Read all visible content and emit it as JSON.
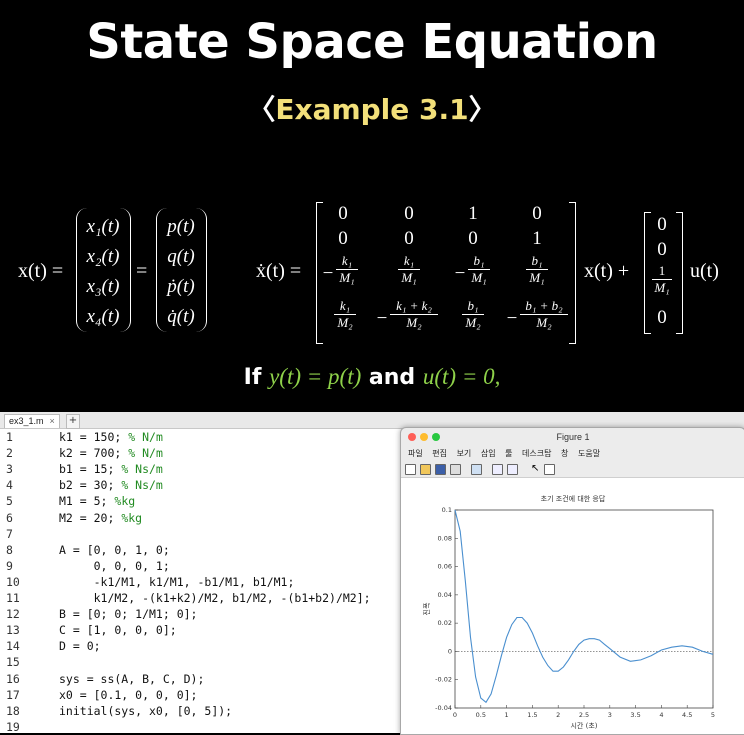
{
  "slide": {
    "title": "State Space Equation",
    "subtitle_open": "〈",
    "subtitle": "Example 3.1",
    "subtitle_close": "〉",
    "eq_left_lhs": "x(t) =",
    "x_vec": [
      "x₁(t)",
      "x₂(t)",
      "x₃(t)",
      "x₄(t)"
    ],
    "state_vec": [
      "p(t)",
      "q(t)",
      "ṗ(t)",
      "q̇(t)"
    ],
    "eq_right_lhs": "ẋ(t) =",
    "A_rows": {
      "r1": [
        "0",
        "0",
        "1",
        "0"
      ],
      "r2": [
        "0",
        "0",
        "0",
        "1"
      ]
    },
    "A_fracs": {
      "r3c1": {
        "sign": "−",
        "num": "k₁",
        "den": "M₁"
      },
      "r3c2": {
        "sign": "",
        "num": "k₁",
        "den": "M₁"
      },
      "r3c3": {
        "sign": "−",
        "num": "b₁",
        "den": "M₁"
      },
      "r3c4": {
        "sign": "",
        "num": "b₁",
        "den": "M₁"
      },
      "r4c1": {
        "sign": "",
        "num": "k₁",
        "den": "M₂"
      },
      "r4c2": {
        "sign": "−",
        "num": "k₁ + k₂",
        "den": "M₂"
      },
      "r4c3": {
        "sign": "",
        "num": "b₁",
        "den": "M₂"
      },
      "r4c4": {
        "sign": "−",
        "num": "b₁ + b₂",
        "den": "M₂"
      }
    },
    "x_plus": "x(t) +",
    "B_vec": {
      "b1": "0",
      "b2": "0",
      "b3_num": "1",
      "b3_den": "M₁",
      "b4": "0"
    },
    "u_term": "u(t)",
    "condition_if": "If",
    "condition_y": "y(t) = p(t)",
    "condition_and": "and",
    "condition_u": "u(t) = 0,"
  },
  "editor": {
    "tab_label": "ex3_1.m",
    "tab_close": "×",
    "tab_add": "+",
    "lines": [
      {
        "n": "1",
        "code": "k1 = 150; ",
        "comment": "% N/m"
      },
      {
        "n": "2",
        "code": "k2 = 700; ",
        "comment": "% N/m"
      },
      {
        "n": "3",
        "code": "b1 = 15; ",
        "comment": "% Ns/m"
      },
      {
        "n": "4",
        "code": "b2 = 30; ",
        "comment": "% Ns/m"
      },
      {
        "n": "5",
        "code": "M1 = 5; ",
        "comment": "%kg"
      },
      {
        "n": "6",
        "code": "M2 = 20; ",
        "comment": "%kg"
      },
      {
        "n": "7",
        "code": "",
        "comment": ""
      },
      {
        "n": "8",
        "code": "A = [0, 0, 1, 0;",
        "comment": ""
      },
      {
        "n": "9",
        "code": "     0, 0, 0, 1;",
        "comment": ""
      },
      {
        "n": "10",
        "code": "     -k1/M1, k1/M1, -b1/M1, b1/M1;",
        "comment": ""
      },
      {
        "n": "11",
        "code": "     k1/M2, -(k1+k2)/M2, b1/M2, -(b1+b2)/M2];",
        "comment": ""
      },
      {
        "n": "12",
        "code": "B = [0; 0; 1/M1; 0];",
        "comment": ""
      },
      {
        "n": "13",
        "code": "C = [1, 0, 0, 0];",
        "comment": ""
      },
      {
        "n": "14",
        "code": "D = 0;",
        "comment": ""
      },
      {
        "n": "15",
        "code": "",
        "comment": ""
      },
      {
        "n": "16",
        "code": "sys = ss(A, B, C, D);",
        "comment": ""
      },
      {
        "n": "17",
        "code": "x0 = [0.1, 0, 0, 0];",
        "comment": ""
      },
      {
        "n": "18",
        "code": "initial(sys, x0, [0, 5]);",
        "comment": ""
      },
      {
        "n": "19",
        "code": "",
        "comment": ""
      }
    ]
  },
  "figure": {
    "window_title": "Figure 1",
    "menu": [
      "파일",
      "편집",
      "보기",
      "삽입",
      "툴",
      "데스크탑",
      "창",
      "도움말"
    ],
    "colors": {
      "close": "#fe5f57",
      "minimize": "#febc2e",
      "maximize": "#28c840",
      "line": "#4a8fcf"
    },
    "chart_data": {
      "type": "line",
      "title": "초기 조건에 대한 응답",
      "xlabel": "시간 (초)",
      "ylabel": "진폭",
      "xlim": [
        0,
        5
      ],
      "ylim": [
        -0.04,
        0.1
      ],
      "xticks": [
        "0",
        "0.5",
        "1",
        "1.5",
        "2",
        "2.5",
        "3",
        "3.5",
        "4",
        "4.5",
        "5"
      ],
      "yticks": [
        "0.1",
        "0.08",
        "0.06",
        "0.04",
        "0.02",
        "0",
        "-0.02",
        "-0.04"
      ],
      "series": [
        {
          "x": [
            0,
            0.1,
            0.2,
            0.3,
            0.4,
            0.5,
            0.6,
            0.7,
            0.8,
            0.9,
            1.0,
            1.1,
            1.2,
            1.3,
            1.4,
            1.5,
            1.6,
            1.7,
            1.8,
            1.9,
            2.0,
            2.1,
            2.2,
            2.3,
            2.4,
            2.5,
            2.6,
            2.7,
            2.8,
            2.9,
            3.0,
            3.2,
            3.4,
            3.6,
            3.8,
            4.0,
            4.2,
            4.4,
            4.6,
            4.8,
            5.0
          ],
          "y": [
            0.1,
            0.085,
            0.05,
            0.01,
            -0.018,
            -0.033,
            -0.036,
            -0.03,
            -0.017,
            -0.003,
            0.01,
            0.019,
            0.024,
            0.024,
            0.02,
            0.013,
            0.004,
            -0.004,
            -0.01,
            -0.014,
            -0.014,
            -0.011,
            -0.006,
            0.0,
            0.005,
            0.008,
            0.009,
            0.009,
            0.008,
            0.005,
            0.002,
            -0.004,
            -0.007,
            -0.006,
            -0.003,
            0.001,
            0.003,
            0.004,
            0.003,
            0.0,
            -0.002
          ]
        }
      ],
      "reference_line": 0,
      "grid": false
    }
  }
}
